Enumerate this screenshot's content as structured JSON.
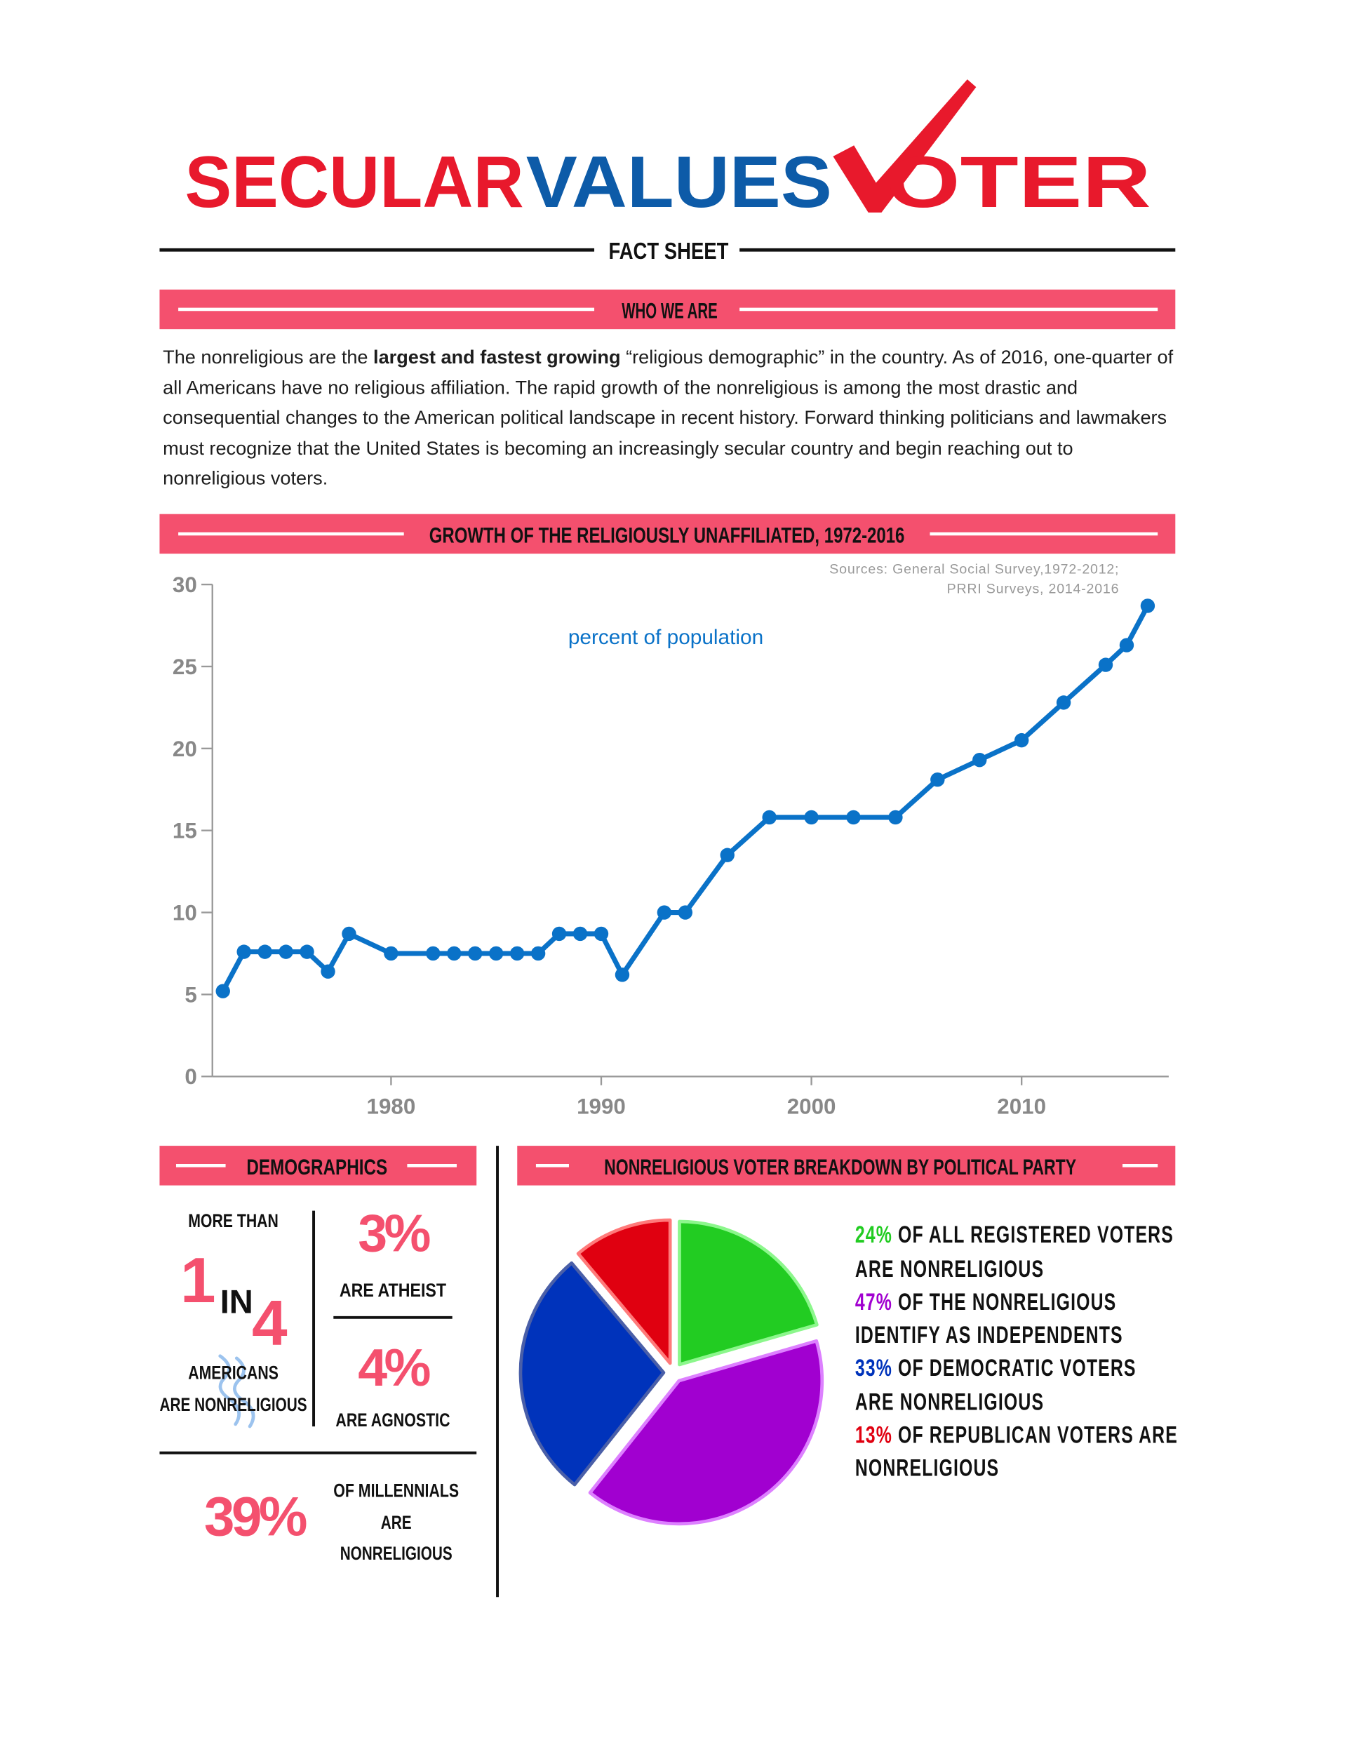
{
  "header": {
    "title_parts": [
      "SECULAR",
      "VALUES",
      "OTER"
    ],
    "subtitle": "FACT SHEET"
  },
  "who_we_are": {
    "heading": "WHO WE ARE",
    "text_before": "The nonreligious are the ",
    "text_bold": "largest and fastest growing",
    "text_after": " “religious demographic” in the country. As of 2016, one-quarter of all Americans have no religious affiliation. The rapid growth of the nonreligious is among the most drastic and consequential changes to the American political landscape in recent history. Forward thinking politicians and lawmakers must recognize that the United States is becoming an increasingly secular country and begin reaching out to nonreligious voters."
  },
  "chart_data": [
    {
      "type": "line",
      "title": "GROWTH OF THE RELIGIOUSLY UNAFFILIATED, 1972-2016",
      "source_lines": [
        "Sources: General Social Survey,1972-2012;",
        "PRRI Surveys, 2014-2016"
      ],
      "annotation": "percent of population",
      "x": [
        1972,
        1973,
        1974,
        1975,
        1976,
        1977,
        1978,
        1980,
        1982,
        1983,
        1984,
        1985,
        1986,
        1987,
        1988,
        1989,
        1990,
        1991,
        1993,
        1994,
        1996,
        1998,
        2000,
        2002,
        2004,
        2006,
        2008,
        2010,
        2012,
        2014,
        2015,
        2016
      ],
      "values": [
        5.2,
        7.6,
        7.6,
        7.6,
        7.6,
        6.4,
        8.7,
        7.5,
        7.5,
        7.5,
        7.5,
        7.5,
        7.5,
        7.5,
        8.7,
        8.7,
        8.7,
        6.2,
        10.0,
        10.0,
        13.5,
        15.8,
        15.8,
        15.8,
        15.8,
        18.1,
        19.3,
        20.5,
        22.8,
        25.1,
        26.3,
        28.7
      ],
      "color": "#0a72c8",
      "xlim": [
        1971.5,
        2017
      ],
      "xticks": [
        1980,
        1990,
        2000,
        2010
      ],
      "ylim": [
        0,
        30
      ],
      "yticks": [
        0,
        5,
        10,
        15,
        20,
        25,
        30
      ]
    },
    {
      "type": "pie",
      "title": "NONRELIGIOUS VOTER BREAKDOWN BY POLITICAL PARTY",
      "categories": [
        "OF ALL REGISTERED VOTERS ARE NONRELIGIOUS",
        "OF THE NONRELIGIOUS IDENTIFY AS INDEPENDENTS",
        "OF DEMOCRATIC VOTERS ARE NONRELIGIOUS",
        "OF REPUBLICAN VOTERS ARE NONRELIGIOUS"
      ],
      "values": [
        24,
        47,
        33,
        13
      ],
      "value_labels": [
        "24%",
        "47%",
        "33%",
        "13%"
      ],
      "colors": [
        "#22cc22",
        "#a100d0",
        "#0033bb",
        "#e00010"
      ],
      "edge_colors": [
        "#8cf78c",
        "#dd80ff",
        "#4a5fa8",
        "#ff7a7a"
      ]
    }
  ],
  "demographics": {
    "heading": "DEMOGRAPHICS",
    "more_than": "MORE THAN",
    "one": "1",
    "in": "IN",
    "four": "4",
    "americans_lines": [
      "AMERICANS",
      "ARE NONRELIGIOUS"
    ],
    "atheist_pct": "3%",
    "atheist": "ARE ATHEIST",
    "agnostic_pct": "4%",
    "agnostic": "ARE AGNOSTIC",
    "millennials_pct": "39%",
    "millennials_lines": [
      "OF MILLENNIALS",
      "ARE",
      "NONRELIGIOUS"
    ]
  }
}
